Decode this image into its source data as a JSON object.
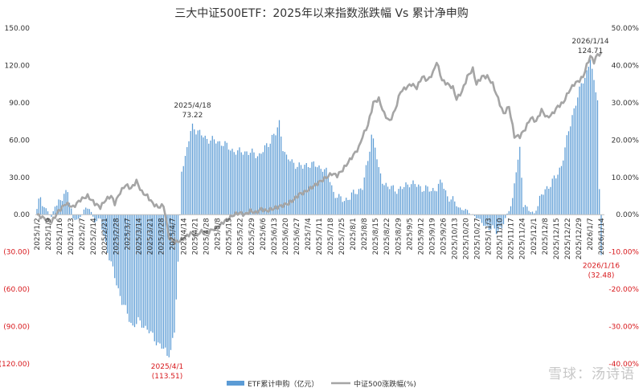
{
  "chart_data": {
    "type": "bar+line",
    "title": "三大中证500ETF：2025年以来指数涨跌幅 Vs 累计净申购",
    "left_axis": {
      "range": [
        -120,
        150
      ],
      "ticks": [
        {
          "value": 150,
          "label": "150.00"
        },
        {
          "value": 120,
          "label": "120.00"
        },
        {
          "value": 90,
          "label": "90.00"
        },
        {
          "value": 60,
          "label": "60.00"
        },
        {
          "value": 30,
          "label": "30.00"
        },
        {
          "value": 0,
          "label": "0.00"
        },
        {
          "value": -30,
          "label": "(30.00)"
        },
        {
          "value": -60,
          "label": "(60.00)"
        },
        {
          "value": -90,
          "label": "(90.00)"
        },
        {
          "value": -120,
          "label": "(120.00)"
        }
      ]
    },
    "right_axis": {
      "range": [
        -40,
        50
      ],
      "ticks": [
        {
          "value": 50,
          "label": "50.00%"
        },
        {
          "value": 40,
          "label": "40.00%"
        },
        {
          "value": 30,
          "label": "30.00%"
        },
        {
          "value": 20,
          "label": "20.00%"
        },
        {
          "value": 10,
          "label": "10.00%"
        },
        {
          "value": 0,
          "label": "0.00%"
        },
        {
          "value": -10,
          "label": "-10.00%"
        },
        {
          "value": -20,
          "label": "-20.00%"
        },
        {
          "value": -30,
          "label": "-30.00%"
        },
        {
          "value": -40,
          "label": "-40.00%"
        }
      ]
    },
    "x_tick_labels": [
      "2025/1/2",
      "2025/1/9",
      "2025/1/16",
      "2025/1/23",
      "2025/2/7",
      "2025/2/14",
      "2025/2/21",
      "2025/2/28",
      "2025/3/7",
      "2025/3/14",
      "2025/3/21",
      "2025/3/28",
      "2025/4/7",
      "2025/4/14",
      "2025/4/21",
      "2025/4/28",
      "2025/5/8",
      "2025/5/15",
      "2025/5/22",
      "2025/5/29",
      "2025/6/6",
      "2025/6/13",
      "2025/6/20",
      "2025/6/27",
      "2025/7/4",
      "2025/7/11",
      "2025/7/18",
      "2025/7/25",
      "2025/8/1",
      "2025/8/8",
      "2025/8/15",
      "2025/8/22",
      "2025/8/29",
      "2025/9/5",
      "2025/9/12",
      "2025/9/19",
      "2025/9/26",
      "2025/10/13",
      "2025/10/20",
      "2025/10/27",
      "2025/11/3",
      "2025/11/10",
      "2025/11/17",
      "2025/11/24",
      "2025/12/1",
      "2025/12/8",
      "2025/12/15",
      "2025/12/22",
      "2025/12/29",
      "2026/1/7",
      "2026/1/14"
    ],
    "bar_keypoints": [
      [
        0,
        4
      ],
      [
        2,
        15
      ],
      [
        4,
        6
      ],
      [
        6,
        3
      ],
      [
        8,
        -3
      ],
      [
        10,
        8
      ],
      [
        14,
        12
      ],
      [
        17,
        21
      ],
      [
        20,
        -4
      ],
      [
        23,
        -4
      ],
      [
        26,
        4
      ],
      [
        29,
        5
      ],
      [
        32,
        -5
      ],
      [
        35,
        -4
      ],
      [
        38,
        -23
      ],
      [
        41,
        -40
      ],
      [
        44,
        -55
      ],
      [
        47,
        -70
      ],
      [
        50,
        -80
      ],
      [
        53,
        -90
      ],
      [
        56,
        -86
      ],
      [
        59,
        -89
      ],
      [
        62,
        -94
      ],
      [
        65,
        -100
      ],
      [
        68,
        -105
      ],
      [
        71,
        -110
      ],
      [
        72,
        -113.51
      ],
      [
        74,
        -108
      ],
      [
        76,
        -95
      ],
      [
        78,
        -40
      ],
      [
        80,
        38
      ],
      [
        82,
        45
      ],
      [
        84,
        60
      ],
      [
        86,
        73.22
      ],
      [
        88,
        68
      ],
      [
        90,
        65
      ],
      [
        93,
        62
      ],
      [
        96,
        60
      ],
      [
        99,
        59
      ],
      [
        102,
        58
      ],
      [
        105,
        55
      ],
      [
        108,
        52
      ],
      [
        111,
        50
      ],
      [
        114,
        51
      ],
      [
        117,
        50
      ],
      [
        120,
        49
      ],
      [
        123,
        48
      ],
      [
        126,
        53
      ],
      [
        128,
        57
      ],
      [
        130,
        63
      ],
      [
        132,
        65
      ],
      [
        134,
        73
      ],
      [
        136,
        55
      ],
      [
        138,
        46
      ],
      [
        141,
        42
      ],
      [
        144,
        40
      ],
      [
        147,
        38
      ],
      [
        150,
        41
      ],
      [
        153,
        40
      ],
      [
        156,
        38
      ],
      [
        158,
        38
      ],
      [
        160,
        34
      ],
      [
        162,
        28
      ],
      [
        164,
        18
      ],
      [
        167,
        13
      ],
      [
        170,
        12
      ],
      [
        173,
        14
      ],
      [
        176,
        18
      ],
      [
        180,
        22
      ],
      [
        183,
        43
      ],
      [
        185,
        65
      ],
      [
        187,
        55
      ],
      [
        189,
        35
      ],
      [
        191,
        28
      ],
      [
        194,
        22
      ],
      [
        197,
        21
      ],
      [
        200,
        20
      ],
      [
        203,
        22
      ],
      [
        206,
        26
      ],
      [
        209,
        24
      ],
      [
        212,
        22
      ],
      [
        215,
        21
      ],
      [
        218,
        19
      ],
      [
        221,
        22
      ],
      [
        224,
        26
      ],
      [
        227,
        15
      ],
      [
        230,
        11
      ],
      [
        233,
        6
      ],
      [
        236,
        4
      ],
      [
        239,
        2
      ],
      [
        242,
        -1
      ],
      [
        245,
        -5
      ],
      [
        248,
        -9
      ],
      [
        251,
        -12
      ],
      [
        254,
        -12
      ],
      [
        257,
        -11
      ],
      [
        260,
        0
      ],
      [
        263,
        12
      ],
      [
        265,
        35
      ],
      [
        267,
        52
      ],
      [
        269,
        10
      ],
      [
        272,
        3
      ],
      [
        275,
        1
      ],
      [
        278,
        12
      ],
      [
        281,
        20
      ],
      [
        284,
        25
      ],
      [
        287,
        30
      ],
      [
        290,
        40
      ],
      [
        293,
        60
      ],
      [
        296,
        80
      ],
      [
        299,
        95
      ],
      [
        302,
        108
      ],
      [
        304,
        115
      ],
      [
        306,
        124.71
      ],
      [
        308,
        105
      ],
      [
        310,
        95
      ],
      [
        311,
        20
      ],
      [
        312,
        -32.48
      ]
    ],
    "line_keypoints": [
      [
        0,
        0
      ],
      [
        4,
        -1
      ],
      [
        8,
        -2
      ],
      [
        12,
        1
      ],
      [
        16,
        3
      ],
      [
        20,
        2
      ],
      [
        24,
        4
      ],
      [
        28,
        5
      ],
      [
        32,
        3
      ],
      [
        35,
        2
      ],
      [
        38,
        4
      ],
      [
        41,
        5
      ],
      [
        43,
        3
      ],
      [
        46,
        6
      ],
      [
        49,
        8
      ],
      [
        52,
        7
      ],
      [
        55,
        9
      ],
      [
        58,
        6
      ],
      [
        61,
        5
      ],
      [
        64,
        3
      ],
      [
        67,
        2
      ],
      [
        70,
        2.5
      ],
      [
        73,
        -6
      ],
      [
        76,
        -7.5
      ],
      [
        79,
        -7
      ],
      [
        82,
        -6
      ],
      [
        85,
        -5
      ],
      [
        88,
        -5.5
      ],
      [
        91,
        -4.5
      ],
      [
        94,
        -5
      ],
      [
        97,
        -4
      ],
      [
        100,
        -3.5
      ],
      [
        103,
        -2
      ],
      [
        106,
        -1
      ],
      [
        109,
        0
      ],
      [
        112,
        0.5
      ],
      [
        115,
        0
      ],
      [
        118,
        1
      ],
      [
        121,
        0.5
      ],
      [
        124,
        1.5
      ],
      [
        127,
        1
      ],
      [
        130,
        1.5
      ],
      [
        133,
        2
      ],
      [
        136,
        2.5
      ],
      [
        139,
        3
      ],
      [
        142,
        4
      ],
      [
        145,
        5.5
      ],
      [
        148,
        6
      ],
      [
        151,
        7
      ],
      [
        154,
        8
      ],
      [
        157,
        9
      ],
      [
        160,
        10
      ],
      [
        163,
        11
      ],
      [
        166,
        10.5
      ],
      [
        169,
        12
      ],
      [
        172,
        14
      ],
      [
        175,
        16
      ],
      [
        178,
        18
      ],
      [
        180,
        21
      ],
      [
        183,
        24
      ],
      [
        186,
        30
      ],
      [
        189,
        31
      ],
      [
        192,
        27
      ],
      [
        195,
        25
      ],
      [
        198,
        28
      ],
      [
        201,
        33
      ],
      [
        204,
        34
      ],
      [
        207,
        35
      ],
      [
        210,
        34
      ],
      [
        213,
        37
      ],
      [
        216,
        36
      ],
      [
        219,
        38
      ],
      [
        221,
        41
      ],
      [
        224,
        36
      ],
      [
        227,
        35
      ],
      [
        230,
        34
      ],
      [
        232,
        31
      ],
      [
        235,
        33
      ],
      [
        238,
        37
      ],
      [
        241,
        39
      ],
      [
        243,
        35
      ],
      [
        246,
        37
      ],
      [
        249,
        37
      ],
      [
        252,
        35
      ],
      [
        255,
        31
      ],
      [
        258,
        27
      ],
      [
        261,
        29
      ],
      [
        264,
        21
      ],
      [
        267,
        21
      ],
      [
        270,
        23
      ],
      [
        273,
        26
      ],
      [
        276,
        25
      ],
      [
        279,
        28
      ],
      [
        282,
        26
      ],
      [
        285,
        27
      ],
      [
        288,
        29
      ],
      [
        291,
        30
      ],
      [
        294,
        33
      ],
      [
        297,
        35
      ],
      [
        300,
        36
      ],
      [
        302,
        37
      ],
      [
        304,
        40
      ],
      [
        306,
        42.5
      ],
      [
        308,
        41
      ],
      [
        310,
        43
      ],
      [
        312,
        43
      ]
    ],
    "bar_count": 313,
    "annotations": [
      {
        "text_date": "2025/4/18",
        "text_value": "73.22",
        "at_index": 86,
        "value": 73.22,
        "color": "#333333"
      },
      {
        "text_date": "2025/4/1",
        "text_value": "(113.51)",
        "at_index": 72,
        "value": -113.51,
        "color": "#d8181c"
      },
      {
        "text_date": "2026/1/14",
        "text_value": "124.71",
        "at_index": 306,
        "value": 124.71,
        "color": "#333333"
      },
      {
        "text_date": "2026/1/16",
        "text_value": "(32.48)",
        "at_index": 312,
        "value": -32.48,
        "color": "#d8181c"
      }
    ],
    "legend": {
      "placement": "bottom-center",
      "items": [
        {
          "label": "ETF累计申购（亿元）",
          "color": "#5b9bd5",
          "kind": "bar"
        },
        {
          "label": "中证500涨跌幅(%)",
          "color": "#a5a5a5",
          "kind": "line"
        }
      ]
    },
    "colors": {
      "bar": "#5b9bd5",
      "line": "#a5a5a5",
      "negative_label": "#d8181c",
      "axis_text": "#333333"
    }
  },
  "watermark": "雪球：汤诗语"
}
